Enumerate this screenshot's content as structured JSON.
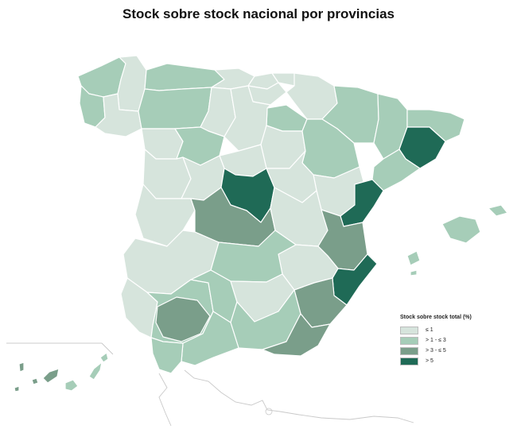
{
  "title": "Stock sobre stock nacional por provincias",
  "legend": {
    "title": "Stock sobre stock total (%)",
    "items": [
      {
        "label": "≤ 1",
        "color": "#d6e4dc"
      },
      {
        "label": "> 1 - ≤ 3",
        "color": "#a6cdb8"
      },
      {
        "label": "> 3 - ≤ 5",
        "color": "#7a9e8a"
      },
      {
        "label": "> 5",
        "color": "#1f6a56"
      }
    ]
  },
  "colors": {
    "c1": "#d6e4dc",
    "c2": "#a6cdb8",
    "c3": "#7a9e8a",
    "c4": "#1f6a56",
    "border": "#ffffff",
    "coast": "#c9c9c9"
  }
}
